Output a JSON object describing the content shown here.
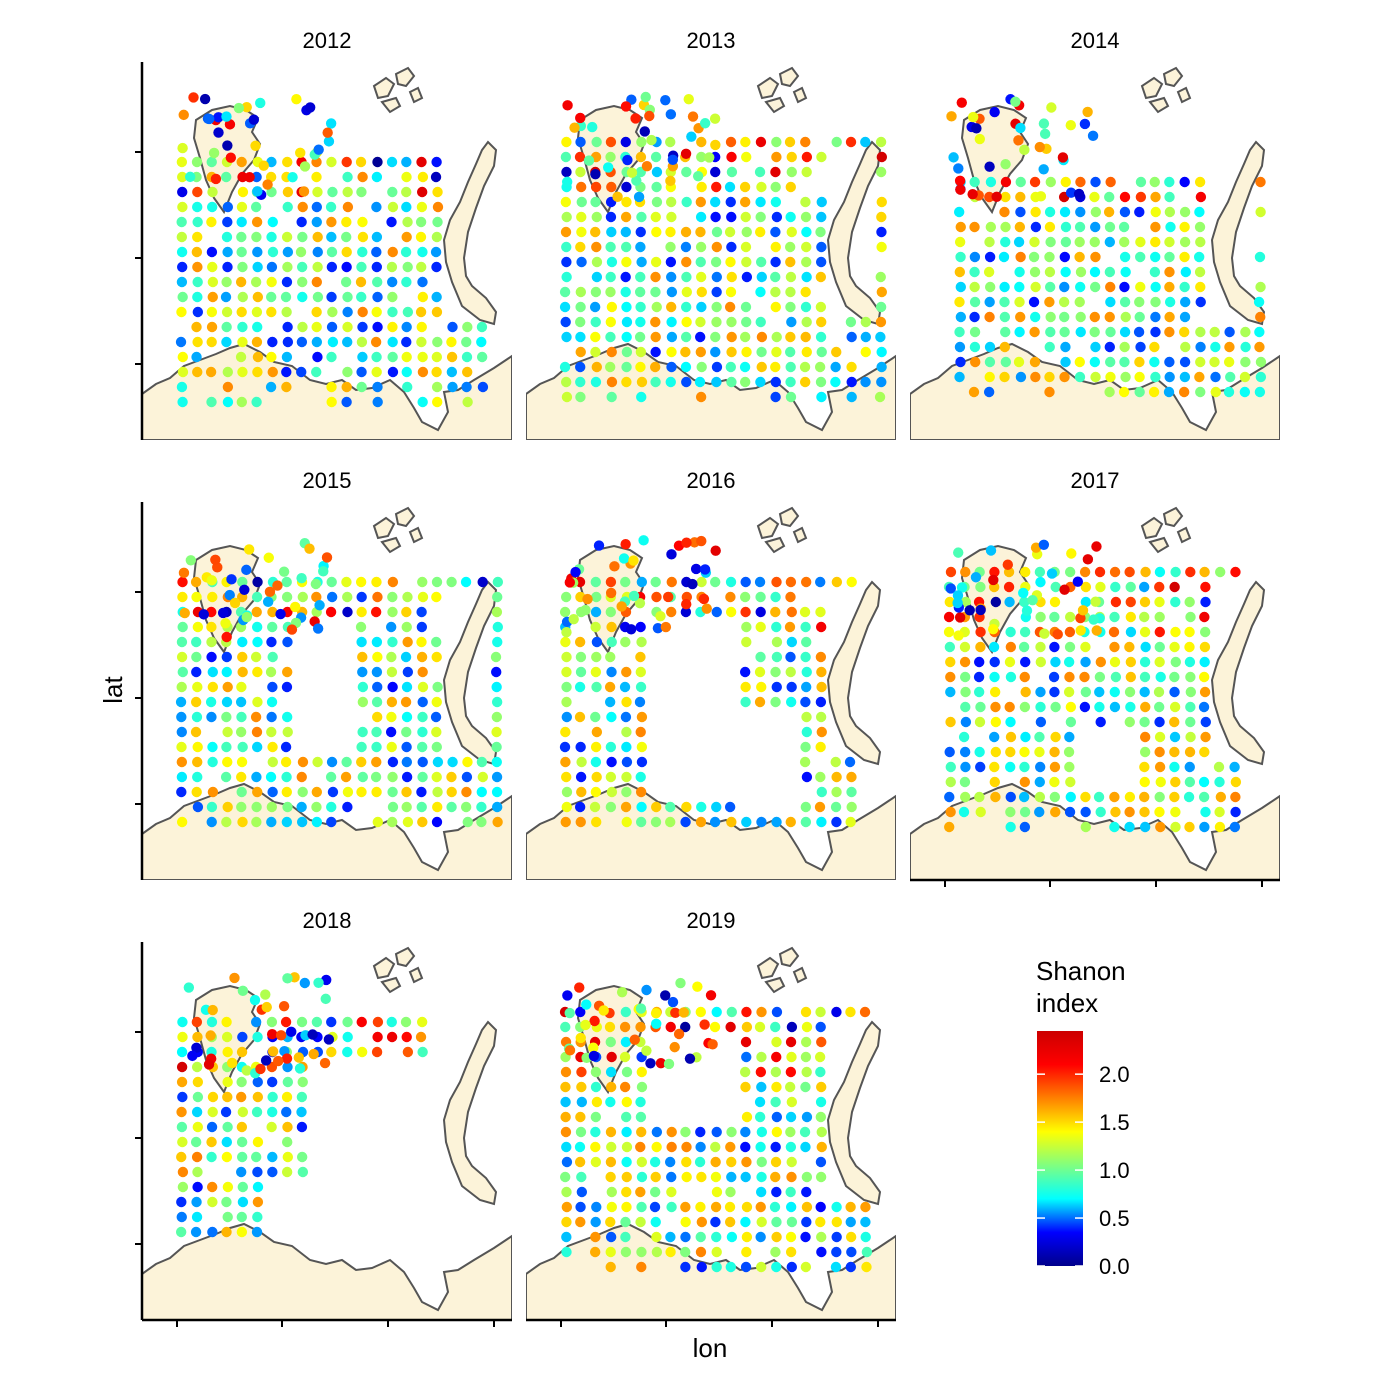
{
  "chart_data": {
    "type": "scatter",
    "title": "",
    "xlabel": "lon",
    "ylabel": "lat",
    "facets": [
      "2012",
      "2013",
      "2014",
      "2015",
      "2016",
      "2017",
      "2018",
      "2019"
    ],
    "legend": {
      "title_lines": [
        "Shanon",
        "index"
      ],
      "ticks": [
        "2.0",
        "1.5",
        "1.0",
        "0.5",
        "0.0"
      ],
      "tick_values": [
        2.0,
        1.5,
        1.0,
        0.5,
        0.0
      ],
      "range": [
        0.0,
        2.45
      ],
      "placement": "right",
      "colormap": [
        "#00008b",
        "#0000ff",
        "#00ffff",
        "#80ff80",
        "#ffff00",
        "#ff8000",
        "#ff0000",
        "#cc0000"
      ]
    },
    "grid": false,
    "colors": {
      "land": "#fcf3d9",
      "coast": "#555555",
      "axis": "#000000",
      "background": "#ffffff"
    }
  }
}
